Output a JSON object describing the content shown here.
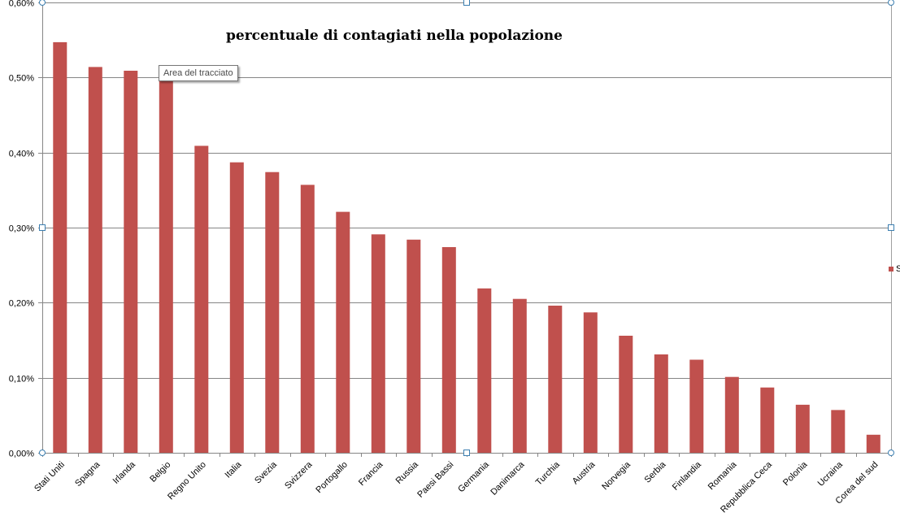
{
  "tooltip": {
    "label": "Area del tracciato"
  },
  "legend": {
    "visible_text": "S",
    "placement": "right",
    "color": "#c0504d"
  },
  "colors": {
    "bar": "#c0504d",
    "gridline": "#868686",
    "axis": "#868686",
    "handle": "#3c7fb1"
  },
  "chart_data": {
    "type": "bar",
    "title": "percentuale di contagiati nella popolazione",
    "xlabel": "",
    "ylabel": "",
    "ylim": [
      0,
      0.6
    ],
    "yticks": [
      {
        "value": 0.0,
        "label": "0,00%"
      },
      {
        "value": 0.1,
        "label": "0,10%"
      },
      {
        "value": 0.2,
        "label": "0,20%"
      },
      {
        "value": 0.3,
        "label": "0,30%"
      },
      {
        "value": 0.4,
        "label": "0,40%"
      },
      {
        "value": 0.5,
        "label": "0,50%"
      },
      {
        "value": 0.6,
        "label": "0,60%"
      }
    ],
    "grid": true,
    "categories": [
      "Stati Uniti",
      "Spagna",
      "Irlanda",
      "Belgio",
      "Regno Unito",
      "Italia",
      "Svezia",
      "Svizzera",
      "Portogallo",
      "Francia",
      "Russia",
      "Paesi Bassi",
      "Germania",
      "Danimarca",
      "Turchia",
      "Austria",
      "Norvegia",
      "Serbia",
      "Finlandia",
      "Romania",
      "Repubblica Ceca",
      "Polonia",
      "Ucraina",
      "Corea del sud"
    ],
    "values": [
      0.547,
      0.514,
      0.509,
      0.5,
      0.409,
      0.387,
      0.374,
      0.357,
      0.321,
      0.291,
      0.284,
      0.274,
      0.219,
      0.205,
      0.196,
      0.187,
      0.156,
      0.131,
      0.124,
      0.101,
      0.087,
      0.064,
      0.057,
      0.024
    ]
  }
}
